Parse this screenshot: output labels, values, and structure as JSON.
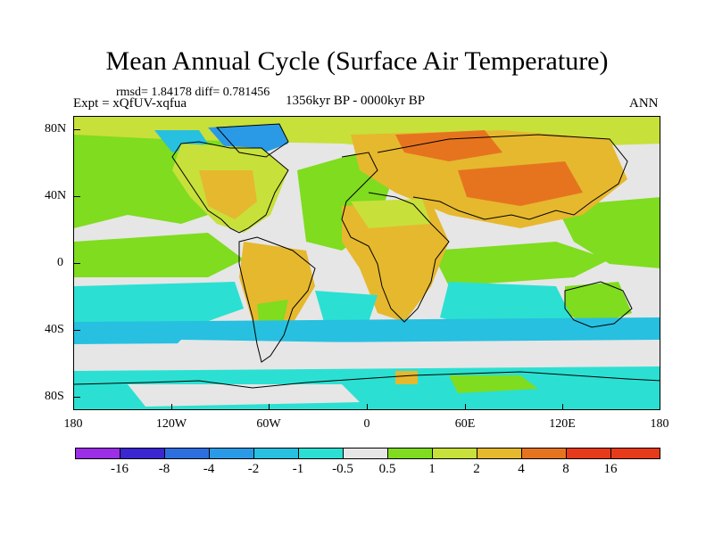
{
  "figure": {
    "title": "Mean Annual Cycle (Surface Air Temperature)",
    "stats": "rmsd= 1.84178 diff= 0.781456",
    "experiment": "Expt = xQfUV-xqfua",
    "period": "1356kyr BP - 0000kyr BP",
    "season": "ANN"
  },
  "axes": {
    "lat_labels": [
      "80N",
      "40N",
      "0",
      "40S",
      "80S"
    ],
    "lon_labels": [
      "180",
      "120W",
      "60W",
      "0",
      "60E",
      "120E",
      "180"
    ]
  },
  "colorbar": {
    "labels": [
      "-16",
      "-8",
      "-4",
      "-2",
      "-1",
      "-0.5",
      "0.5",
      "1",
      "2",
      "4",
      "8",
      "16"
    ],
    "colors": [
      "#9b2ee6",
      "#3a27d0",
      "#2e6fe0",
      "#2a9ae6",
      "#27c0e0",
      "#2be0d2",
      "#e6e6e6",
      "#7fdc1f",
      "#c8e03a",
      "#e6b82e",
      "#e6741f",
      "#e63a1a"
    ]
  },
  "palette": {
    "neutral": "#e6e6e6",
    "cyan": "#2be0d2",
    "light_blue": "#27c0e0",
    "blue": "#2a9ae6",
    "green": "#7fdc1f",
    "yellow_green": "#c8e03a",
    "orange": "#e6b82e",
    "dark_orange": "#e6741f",
    "coastline": "#000000"
  }
}
